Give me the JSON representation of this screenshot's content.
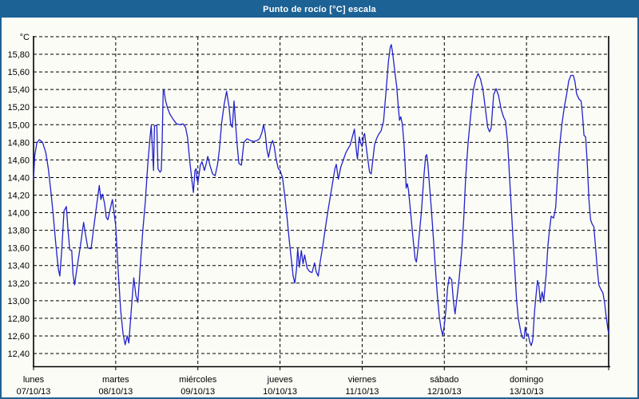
{
  "window": {
    "title": "Punto de rocío [°C] escala"
  },
  "colors": {
    "titlebar": "#1d6295",
    "frame": "#1d6295",
    "background": "#fbfcf6",
    "grid": "#000000",
    "axis": "#000000",
    "text": "#000000",
    "line": "#2222cc"
  },
  "y_axis": {
    "unit_label": "°C",
    "tick_labels": [
      "15,80",
      "15,60",
      "15,40",
      "15,20",
      "15,00",
      "14,80",
      "14,60",
      "14,40",
      "14,20",
      "14,00",
      "13,80",
      "13,60",
      "13,40",
      "13,20",
      "13,00",
      "12,80",
      "12,60",
      "12,40"
    ],
    "tick_values": [
      15.8,
      15.6,
      15.4,
      15.2,
      15.0,
      14.8,
      14.6,
      14.4,
      14.2,
      14.0,
      13.8,
      13.6,
      13.4,
      13.2,
      13.0,
      12.8,
      12.6,
      12.4
    ],
    "grid_top_value": 16.0,
    "grid_bottom_value": 12.4,
    "step": 0.2
  },
  "x_axis": {
    "days": [
      {
        "name": "lunes",
        "date": "07/10/13"
      },
      {
        "name": "martes",
        "date": "08/10/13"
      },
      {
        "name": "miércoles",
        "date": "09/10/13"
      },
      {
        "name": "jueves",
        "date": "10/10/13"
      },
      {
        "name": "viernes",
        "date": "11/10/13"
      },
      {
        "name": "sábado",
        "date": "12/10/13"
      },
      {
        "name": "domingo",
        "date": "13/10/13"
      }
    ]
  },
  "chart_data": {
    "type": "line",
    "title": "Punto de rocío [°C] escala",
    "xlabel": "",
    "ylabel": "°C",
    "ylim": [
      12.25,
      16.0
    ],
    "grid": true,
    "x_categories": [
      "lunes 07/10/13",
      "martes 08/10/13",
      "miércoles 09/10/13",
      "jueves 10/10/13",
      "viernes 11/10/13",
      "sábado 12/10/13",
      "domingo 13/10/13"
    ],
    "x_note": "x expressed in days from start of lunes 07/10/13 (0 to 7)",
    "series": [
      {
        "name": "Punto de rocío [°C]",
        "color": "#2222cc",
        "points": [
          [
            0.0,
            14.38
          ],
          [
            0.015,
            14.65
          ],
          [
            0.04,
            14.79
          ],
          [
            0.07,
            14.83
          ],
          [
            0.11,
            14.8
          ],
          [
            0.15,
            14.68
          ],
          [
            0.18,
            14.5
          ],
          [
            0.21,
            14.25
          ],
          [
            0.24,
            13.97
          ],
          [
            0.27,
            13.65
          ],
          [
            0.3,
            13.37
          ],
          [
            0.32,
            13.28
          ],
          [
            0.345,
            13.6
          ],
          [
            0.37,
            14.02
          ],
          [
            0.4,
            14.07
          ],
          [
            0.42,
            13.8
          ],
          [
            0.44,
            13.58
          ],
          [
            0.465,
            13.57
          ],
          [
            0.48,
            13.3
          ],
          [
            0.5,
            13.18
          ],
          [
            0.53,
            13.38
          ],
          [
            0.57,
            13.62
          ],
          [
            0.61,
            13.89
          ],
          [
            0.635,
            13.74
          ],
          [
            0.66,
            13.6
          ],
          [
            0.7,
            13.59
          ],
          [
            0.735,
            13.85
          ],
          [
            0.77,
            14.1
          ],
          [
            0.8,
            14.31
          ],
          [
            0.82,
            14.15
          ],
          [
            0.84,
            14.21
          ],
          [
            0.865,
            14.1
          ],
          [
            0.885,
            13.95
          ],
          [
            0.905,
            13.92
          ],
          [
            0.935,
            14.05
          ],
          [
            0.96,
            14.15
          ],
          [
            1.0,
            13.85
          ],
          [
            1.03,
            13.35
          ],
          [
            1.06,
            12.9
          ],
          [
            1.09,
            12.62
          ],
          [
            1.115,
            12.5
          ],
          [
            1.14,
            12.6
          ],
          [
            1.16,
            12.52
          ],
          [
            1.19,
            12.9
          ],
          [
            1.22,
            13.26
          ],
          [
            1.245,
            13.06
          ],
          [
            1.27,
            12.98
          ],
          [
            1.3,
            13.4
          ],
          [
            1.33,
            13.8
          ],
          [
            1.36,
            14.12
          ],
          [
            1.39,
            14.55
          ],
          [
            1.42,
            14.88
          ],
          [
            1.432,
            14.99
          ],
          [
            1.448,
            14.72
          ],
          [
            1.46,
            14.48
          ],
          [
            1.472,
            14.99
          ],
          [
            1.5,
            14.99
          ],
          [
            1.515,
            14.5
          ],
          [
            1.54,
            14.46
          ],
          [
            1.555,
            14.48
          ],
          [
            1.565,
            14.8
          ],
          [
            1.578,
            15.38
          ],
          [
            1.588,
            15.4
          ],
          [
            1.605,
            15.28
          ],
          [
            1.63,
            15.19
          ],
          [
            1.66,
            15.12
          ],
          [
            1.7,
            15.06
          ],
          [
            1.74,
            15.01
          ],
          [
            1.78,
            15.0
          ],
          [
            1.82,
            15.01
          ],
          [
            1.85,
            14.97
          ],
          [
            1.875,
            14.85
          ],
          [
            1.9,
            14.6
          ],
          [
            1.93,
            14.35
          ],
          [
            1.945,
            14.23
          ],
          [
            1.965,
            14.48
          ],
          [
            1.978,
            14.5
          ],
          [
            1.99,
            14.38
          ],
          [
            2.0,
            14.34
          ],
          [
            2.03,
            14.54
          ],
          [
            2.05,
            14.58
          ],
          [
            2.08,
            14.48
          ],
          [
            2.1,
            14.55
          ],
          [
            2.12,
            14.64
          ],
          [
            2.15,
            14.53
          ],
          [
            2.18,
            14.44
          ],
          [
            2.21,
            14.42
          ],
          [
            2.24,
            14.55
          ],
          [
            2.262,
            14.72
          ],
          [
            2.29,
            15.02
          ],
          [
            2.32,
            15.23
          ],
          [
            2.35,
            15.38
          ],
          [
            2.38,
            15.2
          ],
          [
            2.4,
            15.0
          ],
          [
            2.42,
            14.97
          ],
          [
            2.44,
            15.27
          ],
          [
            2.46,
            15.0
          ],
          [
            2.48,
            14.75
          ],
          [
            2.5,
            14.56
          ],
          [
            2.53,
            14.54
          ],
          [
            2.56,
            14.8
          ],
          [
            2.6,
            14.84
          ],
          [
            2.64,
            14.82
          ],
          [
            2.68,
            14.81
          ],
          [
            2.72,
            14.82
          ],
          [
            2.75,
            14.84
          ],
          [
            2.78,
            14.91
          ],
          [
            2.8,
            15.0
          ],
          [
            2.82,
            14.9
          ],
          [
            2.84,
            14.72
          ],
          [
            2.86,
            14.63
          ],
          [
            2.89,
            14.78
          ],
          [
            2.91,
            14.82
          ],
          [
            2.93,
            14.75
          ],
          [
            2.95,
            14.62
          ],
          [
            2.98,
            14.5
          ],
          [
            3.0,
            14.48
          ],
          [
            3.03,
            14.4
          ],
          [
            3.06,
            14.18
          ],
          [
            3.08,
            14.0
          ],
          [
            3.1,
            13.8
          ],
          [
            3.12,
            13.62
          ],
          [
            3.14,
            13.45
          ],
          [
            3.16,
            13.28
          ],
          [
            3.18,
            13.2
          ],
          [
            3.2,
            13.35
          ],
          [
            3.215,
            13.59
          ],
          [
            3.235,
            13.38
          ],
          [
            3.26,
            13.57
          ],
          [
            3.28,
            13.42
          ],
          [
            3.3,
            13.52
          ],
          [
            3.33,
            13.37
          ],
          [
            3.36,
            13.33
          ],
          [
            3.39,
            13.32
          ],
          [
            3.42,
            13.43
          ],
          [
            3.44,
            13.33
          ],
          [
            3.465,
            13.28
          ],
          [
            3.49,
            13.45
          ],
          [
            3.52,
            13.62
          ],
          [
            3.55,
            13.81
          ],
          [
            3.58,
            14.0
          ],
          [
            3.61,
            14.17
          ],
          [
            3.64,
            14.34
          ],
          [
            3.668,
            14.5
          ],
          [
            3.685,
            14.55
          ],
          [
            3.71,
            14.38
          ],
          [
            3.74,
            14.52
          ],
          [
            3.77,
            14.6
          ],
          [
            3.8,
            14.68
          ],
          [
            3.83,
            14.73
          ],
          [
            3.855,
            14.77
          ],
          [
            3.88,
            14.86
          ],
          [
            3.905,
            14.95
          ],
          [
            3.93,
            14.7
          ],
          [
            3.942,
            14.61
          ],
          [
            3.965,
            14.86
          ],
          [
            3.985,
            14.78
          ],
          [
            4.0,
            14.75
          ],
          [
            4.018,
            14.88
          ],
          [
            4.03,
            14.9
          ],
          [
            4.05,
            14.74
          ],
          [
            4.07,
            14.6
          ],
          [
            4.09,
            14.46
          ],
          [
            4.11,
            14.44
          ],
          [
            4.13,
            14.6
          ],
          [
            4.15,
            14.77
          ],
          [
            4.175,
            14.84
          ],
          [
            4.2,
            14.89
          ],
          [
            4.23,
            14.93
          ],
          [
            4.26,
            15.04
          ],
          [
            4.29,
            15.38
          ],
          [
            4.32,
            15.72
          ],
          [
            4.342,
            15.88
          ],
          [
            4.355,
            15.91
          ],
          [
            4.37,
            15.82
          ],
          [
            4.4,
            15.58
          ],
          [
            4.42,
            15.44
          ],
          [
            4.44,
            15.2
          ],
          [
            4.455,
            15.05
          ],
          [
            4.47,
            15.09
          ],
          [
            4.49,
            15.0
          ],
          [
            4.51,
            14.77
          ],
          [
            4.523,
            14.55
          ],
          [
            4.535,
            14.28
          ],
          [
            4.55,
            14.33
          ],
          [
            4.565,
            14.25
          ],
          [
            4.59,
            14.0
          ],
          [
            4.62,
            13.7
          ],
          [
            4.645,
            13.47
          ],
          [
            4.66,
            13.44
          ],
          [
            4.68,
            13.6
          ],
          [
            4.7,
            13.8
          ],
          [
            4.72,
            14.0
          ],
          [
            4.75,
            14.4
          ],
          [
            4.772,
            14.64
          ],
          [
            4.785,
            14.66
          ],
          [
            4.8,
            14.55
          ],
          [
            4.82,
            14.3
          ],
          [
            4.84,
            14.07
          ],
          [
            4.86,
            13.8
          ],
          [
            4.88,
            13.53
          ],
          [
            4.9,
            13.25
          ],
          [
            4.92,
            13.0
          ],
          [
            4.94,
            12.81
          ],
          [
            4.96,
            12.68
          ],
          [
            4.98,
            12.61
          ],
          [
            5.0,
            12.72
          ],
          [
            5.02,
            12.9
          ],
          [
            5.04,
            13.15
          ],
          [
            5.06,
            13.27
          ],
          [
            5.09,
            13.24
          ],
          [
            5.11,
            13.0
          ],
          [
            5.13,
            12.85
          ],
          [
            5.16,
            13.08
          ],
          [
            5.18,
            13.25
          ],
          [
            5.21,
            13.55
          ],
          [
            5.235,
            13.92
          ],
          [
            5.26,
            14.4
          ],
          [
            5.29,
            14.8
          ],
          [
            5.32,
            15.1
          ],
          [
            5.35,
            15.38
          ],
          [
            5.38,
            15.51
          ],
          [
            5.41,
            15.58
          ],
          [
            5.44,
            15.52
          ],
          [
            5.47,
            15.4
          ],
          [
            5.5,
            15.18
          ],
          [
            5.528,
            14.97
          ],
          [
            5.55,
            14.92
          ],
          [
            5.57,
            14.96
          ],
          [
            5.6,
            15.34
          ],
          [
            5.63,
            15.41
          ],
          [
            5.66,
            15.33
          ],
          [
            5.69,
            15.18
          ],
          [
            5.72,
            15.09
          ],
          [
            5.745,
            15.04
          ],
          [
            5.77,
            14.8
          ],
          [
            5.8,
            14.3
          ],
          [
            5.83,
            13.8
          ],
          [
            5.86,
            13.32
          ],
          [
            5.88,
            13.0
          ],
          [
            5.9,
            12.8
          ],
          [
            5.93,
            12.65
          ],
          [
            5.95,
            12.58
          ],
          [
            5.97,
            12.57
          ],
          [
            5.985,
            12.7
          ],
          [
            6.0,
            12.62
          ],
          [
            6.02,
            12.62
          ],
          [
            6.04,
            12.53
          ],
          [
            6.058,
            12.49
          ],
          [
            6.075,
            12.55
          ],
          [
            6.1,
            12.9
          ],
          [
            6.12,
            13.1
          ],
          [
            6.135,
            13.23
          ],
          [
            6.15,
            13.17
          ],
          [
            6.17,
            12.98
          ],
          [
            6.19,
            13.1
          ],
          [
            6.21,
            13.0
          ],
          [
            6.24,
            13.3
          ],
          [
            6.26,
            13.62
          ],
          [
            6.28,
            13.8
          ],
          [
            6.3,
            13.96
          ],
          [
            6.33,
            13.94
          ],
          [
            6.355,
            14.06
          ],
          [
            6.38,
            14.45
          ],
          [
            6.4,
            14.73
          ],
          [
            6.43,
            15.0
          ],
          [
            6.46,
            15.2
          ],
          [
            6.49,
            15.35
          ],
          [
            6.515,
            15.5
          ],
          [
            6.54,
            15.56
          ],
          [
            6.57,
            15.56
          ],
          [
            6.59,
            15.49
          ],
          [
            6.61,
            15.35
          ],
          [
            6.64,
            15.29
          ],
          [
            6.665,
            15.27
          ],
          [
            6.68,
            15.13
          ],
          [
            6.7,
            14.88
          ],
          [
            6.72,
            14.86
          ],
          [
            6.74,
            14.55
          ],
          [
            6.76,
            14.15
          ],
          [
            6.78,
            13.92
          ],
          [
            6.8,
            13.87
          ],
          [
            6.82,
            13.84
          ],
          [
            6.84,
            13.62
          ],
          [
            6.86,
            13.38
          ],
          [
            6.88,
            13.18
          ],
          [
            6.905,
            13.13
          ],
          [
            6.93,
            13.09
          ],
          [
            6.95,
            12.98
          ],
          [
            6.97,
            12.82
          ],
          [
            6.99,
            12.68
          ],
          [
            7.0,
            12.63
          ]
        ]
      }
    ]
  }
}
